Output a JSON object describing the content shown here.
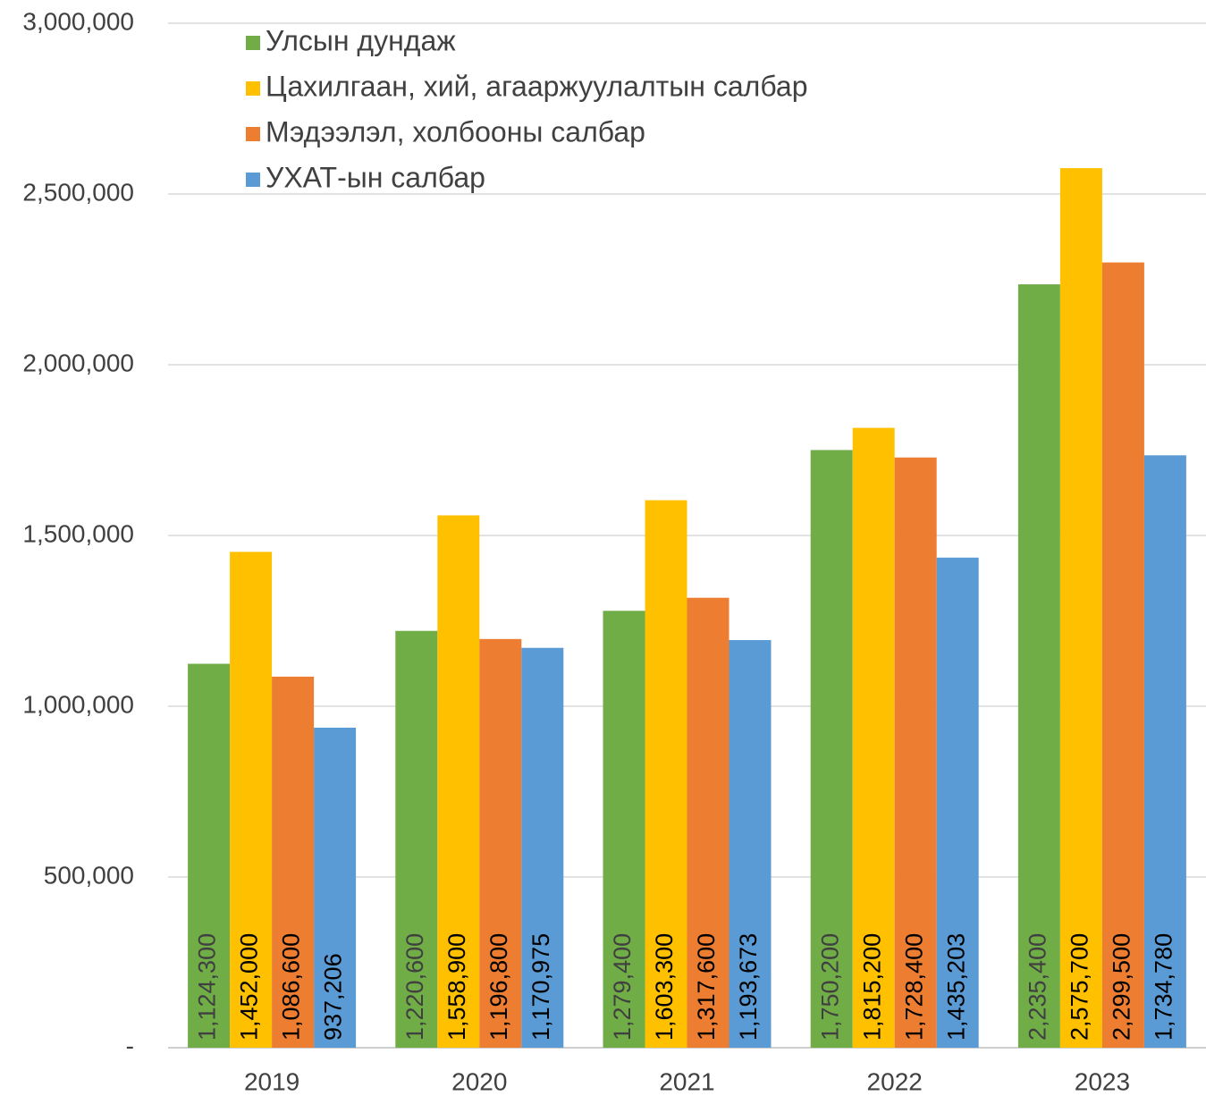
{
  "chart_data": {
    "type": "bar",
    "categories": [
      "2019",
      "2020",
      "2021",
      "2022",
      "2023"
    ],
    "series": [
      {
        "name": "Улсын дундаж",
        "color": "#70ad47",
        "label_color": "#404040",
        "values": [
          1124300,
          1220600,
          1279400,
          1750200,
          2235400
        ],
        "value_labels": [
          "1,124,300",
          "1,220,600",
          "1,279,400",
          "1,750,200",
          "2,235,400"
        ]
      },
      {
        "name": "Цахилгаан, хий, агааржуулалтын салбар",
        "color": "#ffc000",
        "label_color": "#000000",
        "values": [
          1452000,
          1558900,
          1603300,
          1815200,
          2575700
        ],
        "value_labels": [
          "1,452,000",
          "1,558,900",
          "1,603,300",
          "1,815,200",
          "2,575,700"
        ]
      },
      {
        "name": "Мэдээлэл, холбооны салбар",
        "color": "#ed7d31",
        "label_color": "#000000",
        "values": [
          1086600,
          1196800,
          1317600,
          1728400,
          2299500
        ],
        "value_labels": [
          "1,086,600",
          "1,196,800",
          "1,317,600",
          "1,728,400",
          "2,299,500"
        ]
      },
      {
        "name": "УХАТ-ын салбар",
        "color": "#5b9bd5",
        "label_color": "#000000",
        "values": [
          937206,
          1170975,
          1193673,
          1435203,
          1734780
        ],
        "value_labels": [
          "937,206",
          "1,170,975",
          "1,193,673",
          "1,435,203",
          "1,734,780"
        ]
      }
    ],
    "ylim": [
      0,
      3000000
    ],
    "yticks": [
      {
        "value": 0,
        "label": "-"
      },
      {
        "value": 500000,
        "label": "500,000"
      },
      {
        "value": 1000000,
        "label": "1,000,000"
      },
      {
        "value": 1500000,
        "label": "1,500,000"
      },
      {
        "value": 2000000,
        "label": "2,000,000"
      },
      {
        "value": 2500000,
        "label": "2,500,000"
      },
      {
        "value": 3000000,
        "label": "3,000,000"
      }
    ],
    "grid": true,
    "legend": "upper left"
  }
}
